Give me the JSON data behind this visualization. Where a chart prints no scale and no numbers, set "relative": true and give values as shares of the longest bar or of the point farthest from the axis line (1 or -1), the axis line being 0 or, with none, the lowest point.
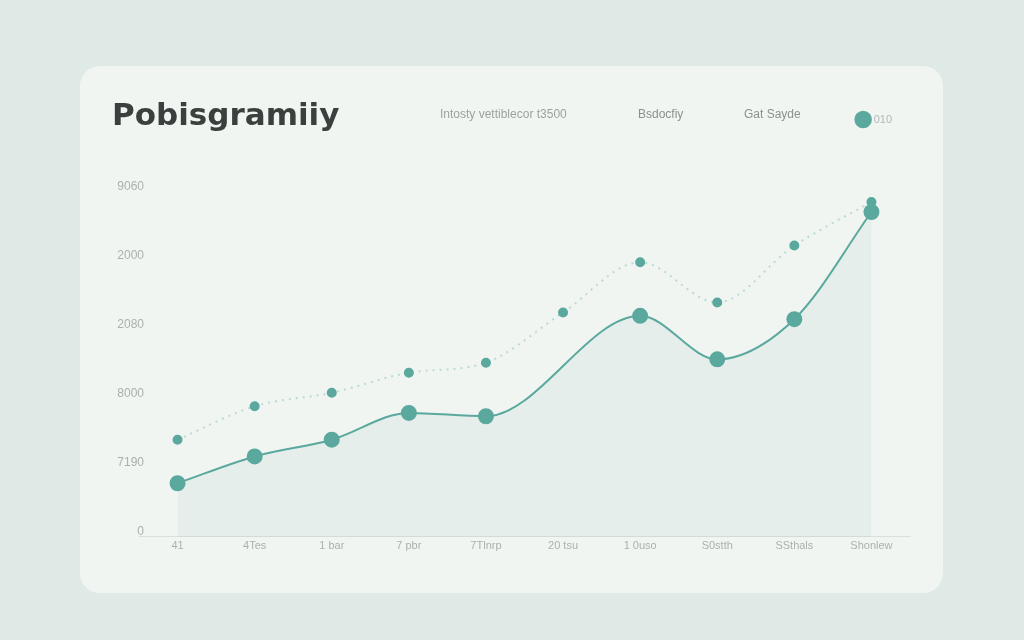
{
  "chart_data": {
    "type": "line",
    "title": "Pobisgramiiy",
    "subtitle": "Intosty vettiblecor t3500",
    "annotations": [
      "Bsdocfiy",
      "Gat Sayde",
      "9060",
      "2000",
      "2080",
      "8000",
      "7190",
      "0"
    ],
    "categories": [
      "41",
      "4Tes",
      "1 bar",
      "7 pbr",
      "7Tlnrp",
      "20 tsu",
      "1 0uso",
      "S0stth",
      "SSthals",
      "Shonlew"
    ],
    "relative": true,
    "grid": false,
    "legend": "top right",
    "series": [
      {
        "name": "010",
        "type": "area",
        "color": "#5aa89e",
        "marker": "circle",
        "line_style": "solid",
        "values": [
          0.16,
          0.24,
          0.29,
          0.37,
          0.36,
          null,
          0.66,
          0.53,
          0.65,
          0.97
        ]
      },
      {
        "color": "#5aa89e",
        "marker": "circle",
        "line_style": "dotted",
        "values": [
          0.29,
          0.39,
          0.43,
          0.49,
          0.52,
          0.67,
          0.82,
          0.7,
          0.87,
          1
        ]
      }
    ]
  }
}
